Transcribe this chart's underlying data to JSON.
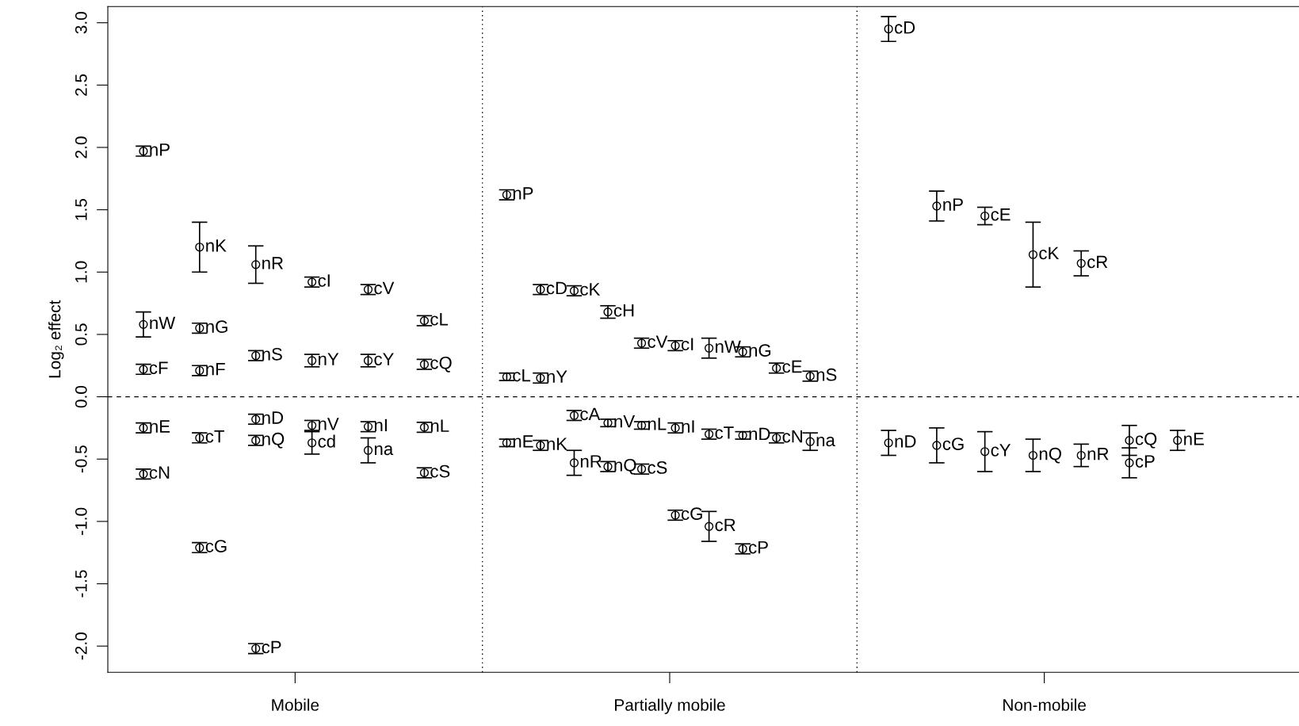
{
  "chart_data": {
    "type": "scatter",
    "ylabel": "Log₂ effect",
    "categories": [
      "Mobile",
      "Partially mobile",
      "Non-mobile"
    ],
    "ylim": [
      -2.21,
      3.13
    ],
    "yticks": [
      {
        "value": -2,
        "label": "-2.0"
      },
      {
        "value": -1.5,
        "label": "-1.5"
      },
      {
        "value": -1,
        "label": "-1.0"
      },
      {
        "value": -0.5,
        "label": "-0.5"
      },
      {
        "value": 0,
        "label": "0.0"
      },
      {
        "value": 0.5,
        "label": "0.5"
      },
      {
        "value": 1,
        "label": "1.0"
      },
      {
        "value": 1.5,
        "label": "1.5"
      },
      {
        "value": 2,
        "label": "2.0"
      },
      {
        "value": 2.5,
        "label": "2.5"
      },
      {
        "value": 3,
        "label": "3.0"
      }
    ],
    "grid": false,
    "legend": false,
    "marker": "circle",
    "series": [
      {
        "color": "#000000",
        "x": [
          "Mobile",
          "Mobile",
          "Mobile",
          "Mobile",
          "Mobile",
          "Partially mobile",
          "Partially mobile",
          "Partially mobile",
          "Non-mobile",
          "Non-mobile"
        ],
        "values": [
          1.97,
          0.58,
          0.22,
          -0.25,
          -0.62,
          1.62,
          0.16,
          -0.37,
          2.95,
          -0.37
        ],
        "errors": [
          0.04,
          0.1,
          0.04,
          0.04,
          0.04,
          0.04,
          0.03,
          0.03,
          0.1,
          0.1
        ],
        "value_labels": [
          "nP",
          "nW",
          "cF",
          "nE",
          "cN",
          "nP",
          "cL",
          "nE",
          "cD",
          "nD"
        ]
      },
      {
        "color": "#000000",
        "x": [
          "Mobile",
          "Mobile",
          "Mobile",
          "Mobile",
          "Mobile",
          "Partially mobile",
          "Partially mobile",
          "Partially mobile",
          "Non-mobile",
          "Non-mobile"
        ],
        "values": [
          1.2,
          0.55,
          0.21,
          -0.33,
          -1.21,
          0.86,
          0.15,
          -0.39,
          1.53,
          -0.39
        ],
        "errors": [
          0.2,
          0.04,
          0.04,
          0.04,
          0.04,
          0.04,
          0.04,
          0.04,
          0.12,
          0.14
        ],
        "value_labels": [
          "nK",
          "nG",
          "nF",
          "cT",
          "cG",
          "cD",
          "nY",
          "nK",
          "nP",
          "cG"
        ]
      },
      {
        "color": "#000000",
        "x": [
          "Mobile",
          "Mobile",
          "Mobile",
          "Mobile",
          "Mobile",
          "Partially mobile",
          "Partially mobile",
          "Partially mobile",
          "Non-mobile",
          "Non-mobile"
        ],
        "values": [
          1.06,
          0.33,
          -0.18,
          -0.35,
          -2.02,
          0.85,
          -0.15,
          -0.53,
          1.45,
          -0.44
        ],
        "errors": [
          0.15,
          0.04,
          0.04,
          0.04,
          0.04,
          0.04,
          0.04,
          0.1,
          0.07,
          0.16
        ],
        "value_labels": [
          "nR",
          "nS",
          "nD",
          "nQ",
          "cP",
          "cK",
          "cA",
          "nR",
          "cE",
          "cY"
        ]
      },
      {
        "color": "#000000",
        "x": [
          "Mobile",
          "Mobile",
          "Mobile",
          "Mobile",
          "Partially mobile",
          "Partially mobile",
          "Partially mobile",
          "Non-mobile",
          "Non-mobile"
        ],
        "values": [
          0.92,
          0.29,
          -0.23,
          -0.37,
          0.68,
          -0.21,
          -0.56,
          1.14,
          -0.47
        ],
        "errors": [
          0.04,
          0.05,
          0.04,
          0.09,
          0.05,
          0.03,
          0.04,
          0.26,
          0.13
        ],
        "value_labels": [
          "cI",
          "nY",
          "nV",
          "cd",
          "cH",
          "nV",
          "nQ",
          "cK",
          "nQ"
        ]
      },
      {
        "color": "#000000",
        "x": [
          "Mobile",
          "Mobile",
          "Mobile",
          "Mobile",
          "Partially mobile",
          "Partially mobile",
          "Partially mobile",
          "Non-mobile",
          "Non-mobile"
        ],
        "values": [
          0.86,
          0.29,
          -0.24,
          -0.43,
          0.43,
          -0.23,
          -0.58,
          1.07,
          -0.47
        ],
        "errors": [
          0.04,
          0.05,
          0.04,
          0.1,
          0.04,
          0.03,
          0.04,
          0.1,
          0.09
        ],
        "value_labels": [
          "cV",
          "cY",
          "nI",
          "na",
          "cV",
          "nL",
          "cS",
          "cR",
          "nR"
        ]
      },
      {
        "color": "#000000",
        "x": [
          "Mobile",
          "Mobile",
          "Mobile",
          "Mobile",
          "Partially mobile",
          "Partially mobile",
          "Partially mobile",
          "Non-mobile",
          "Non-mobile"
        ],
        "values": [
          0.61,
          0.26,
          -0.245,
          -0.61,
          0.41,
          -0.25,
          -0.95,
          -0.35,
          -0.53
        ],
        "errors": [
          0.04,
          0.04,
          0.04,
          0.04,
          0.04,
          0.04,
          0.04,
          0.12,
          0.12
        ],
        "value_labels": [
          "cL",
          "cQ",
          "nL",
          "cS",
          "cI",
          "nI",
          "cG",
          "cQ",
          "cP"
        ]
      },
      {
        "color": "#000000",
        "x": [
          "Partially mobile",
          "Partially mobile",
          "Partially mobile",
          "Non-mobile"
        ],
        "values": [
          0.39,
          -0.3,
          -1.04,
          -0.35
        ],
        "errors": [
          0.08,
          0.04,
          0.12,
          0.08
        ],
        "value_labels": [
          "nW",
          "cT",
          "cR",
          "nE"
        ]
      },
      {
        "color": "#000000",
        "x": [
          "Partially mobile",
          "Partially mobile",
          "Partially mobile"
        ],
        "values": [
          0.36,
          -0.31,
          -1.22
        ],
        "errors": [
          0.04,
          0.03,
          0.04
        ],
        "value_labels": [
          "nG",
          "nD",
          "cP"
        ]
      },
      {
        "color": "#000000",
        "x": [
          "Partially mobile",
          "Partially mobile"
        ],
        "values": [
          0.23,
          -0.33
        ],
        "errors": [
          0.04,
          0.04
        ],
        "value_labels": [
          "cE",
          "cN"
        ]
      },
      {
        "color": "#000000",
        "x": [
          "Partially mobile",
          "Partially mobile"
        ],
        "values": [
          0.165,
          -0.36
        ],
        "errors": [
          0.04,
          0.07
        ],
        "value_labels": [
          "nS",
          "na"
        ]
      }
    ],
    "ref_lines": [
      {
        "axis": "y",
        "value": 0,
        "line_style": "dashed",
        "color": "#000000"
      }
    ]
  }
}
